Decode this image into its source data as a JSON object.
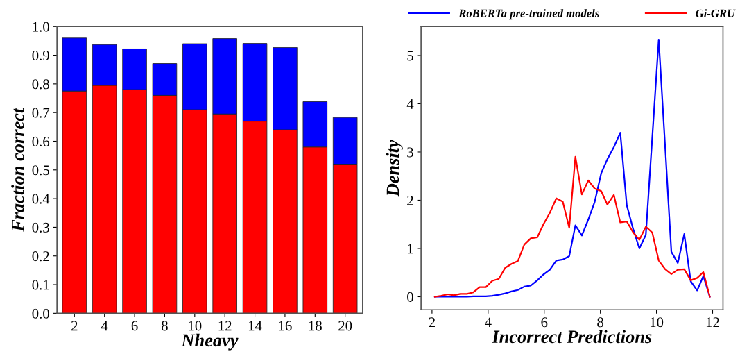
{
  "chart_data": [
    {
      "type": "bar",
      "stacked": true,
      "xlabel": "Nheavy",
      "ylabel": "Fraction correct",
      "categories": [
        "2",
        "4",
        "6",
        "8",
        "10",
        "12",
        "14",
        "16",
        "18",
        "20"
      ],
      "series": [
        {
          "color": "#ff0000",
          "values": [
            0.775,
            0.795,
            0.78,
            0.76,
            0.71,
            0.695,
            0.67,
            0.64,
            0.58,
            0.52
          ]
        },
        {
          "color": "#0000ff",
          "values": [
            0.185,
            0.142,
            0.142,
            0.111,
            0.23,
            0.263,
            0.271,
            0.287,
            0.158,
            0.163
          ]
        }
      ],
      "ylim": [
        0,
        1
      ],
      "yticks": [
        {
          "value": 0,
          "label": "0.0"
        },
        0.1,
        0.2,
        0.3,
        0.4,
        0.5,
        0.6,
        0.7,
        0.8,
        0.9,
        {
          "value": 1,
          "label": "1.0"
        }
      ],
      "grid": false,
      "legend": false
    },
    {
      "type": "line",
      "xlabel": "Incorrect Predictions",
      "ylabel": "Density",
      "x": [
        2.1,
        2.33,
        2.56,
        2.78,
        3.01,
        3.24,
        3.47,
        3.7,
        3.92,
        4.15,
        4.38,
        4.61,
        4.83,
        5.06,
        5.29,
        5.52,
        5.75,
        5.97,
        6.2,
        6.43,
        6.66,
        6.89,
        7.11,
        7.34,
        7.57,
        7.8,
        8.03,
        8.25,
        8.48,
        8.71,
        8.94,
        9.17,
        9.39,
        9.62,
        9.85,
        10.08,
        10.31,
        10.53,
        10.76,
        10.99,
        11.22,
        11.45,
        11.67,
        11.9
      ],
      "series": [
        {
          "name": "RoBERTa pre-trained models",
          "color": "#0000ff",
          "values": [
            0,
            0,
            0,
            0,
            0,
            0,
            0.01,
            0.01,
            0.01,
            0.02,
            0.04,
            0.07,
            0.11,
            0.14,
            0.21,
            0.23,
            0.34,
            0.46,
            0.56,
            0.75,
            0.77,
            0.84,
            1.48,
            1.27,
            1.6,
            1.97,
            2.56,
            2.85,
            3.1,
            3.4,
            1.9,
            1.4,
            1.0,
            1.28,
            3.3,
            5.33,
            3.1,
            0.93,
            0.7,
            1.3,
            0.32,
            0.13,
            0.43,
            0
          ]
        },
        {
          "name": "Gi-GRU",
          "color": "#ff0000",
          "values": [
            0,
            0.02,
            0.05,
            0.03,
            0.06,
            0.06,
            0.09,
            0.2,
            0.2,
            0.33,
            0.37,
            0.6,
            0.68,
            0.74,
            1.08,
            1.21,
            1.23,
            1.5,
            1.74,
            2.04,
            1.97,
            1.43,
            2.9,
            2.12,
            2.41,
            2.24,
            2.19,
            1.91,
            2.11,
            1.54,
            1.56,
            1.33,
            1.18,
            1.45,
            1.33,
            0.75,
            0.57,
            0.47,
            0.56,
            0.57,
            0.34,
            0.39,
            0.51,
            0
          ]
        }
      ],
      "xlim": [
        1.61,
        12.37
      ],
      "xticks": [
        2,
        4,
        6,
        8,
        10,
        12
      ],
      "ylim": [
        -0.27,
        5.6
      ],
      "yticks": [
        0,
        1,
        2,
        3,
        4,
        5
      ],
      "grid": false,
      "legend": "top",
      "marker": "none",
      "line_style": "solid"
    }
  ]
}
